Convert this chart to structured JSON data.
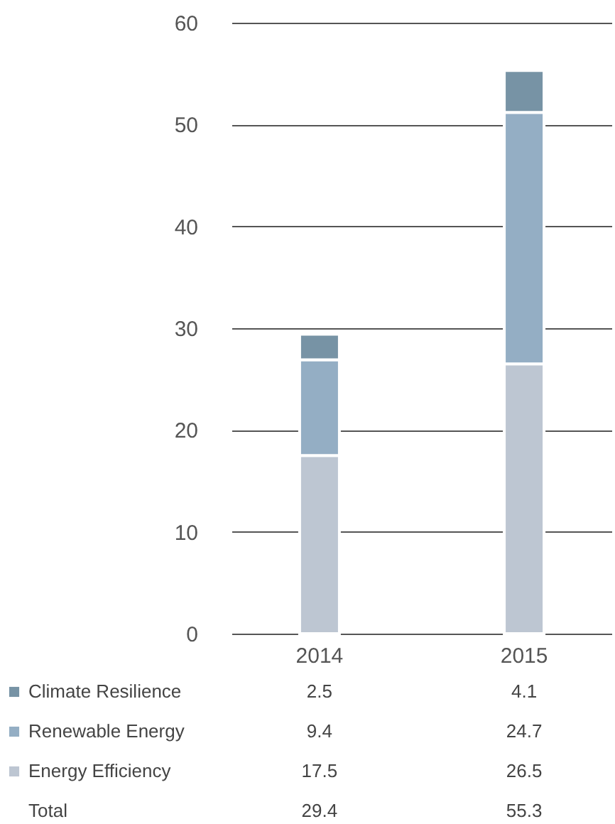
{
  "chart_data": {
    "type": "bar",
    "stacked": true,
    "categories": [
      "2014",
      "2015"
    ],
    "series": [
      {
        "name": "Energy Efficiency",
        "color": "#bdc6d2",
        "values": [
          17.5,
          26.5
        ]
      },
      {
        "name": "Renewable Energy",
        "color": "#94aec4",
        "values": [
          9.4,
          24.7
        ]
      },
      {
        "name": "Climate Resilience",
        "color": "#7793a5",
        "values": [
          2.5,
          4.1
        ]
      }
    ],
    "ylim": [
      0,
      60
    ],
    "yticks": [
      0,
      10,
      20,
      30,
      40,
      50,
      60
    ],
    "grid": "y",
    "legend": "bottom",
    "data_labels": true,
    "annotations": [
      "Total",
      "29.4",
      "55.3"
    ]
  }
}
